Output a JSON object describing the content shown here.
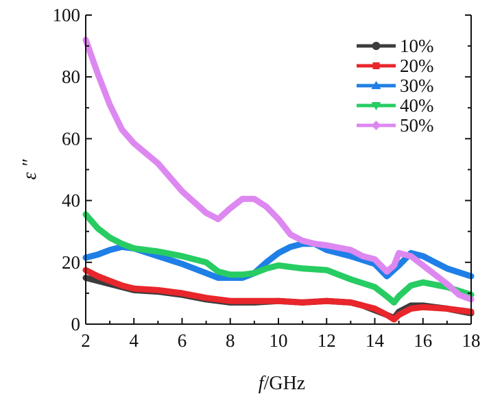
{
  "chart_data": {
    "type": "line",
    "xlabel": "f /GHz",
    "xlabel_italic": "f",
    "xlabel_rest": "/GHz",
    "ylabel": "ε ″",
    "xlim": [
      2,
      18
    ],
    "ylim": [
      0,
      100
    ],
    "xticks": [
      2,
      4,
      6,
      8,
      10,
      12,
      14,
      16,
      18
    ],
    "yticks": [
      0,
      20,
      40,
      60,
      80,
      100
    ],
    "grid": false,
    "legend_position": "top-right",
    "series": [
      {
        "name": "10%",
        "color": "#3c3c3c",
        "marker": "circle",
        "x": [
          2,
          2.5,
          3,
          3.5,
          4,
          5,
          6,
          7,
          8,
          9,
          10,
          11,
          12,
          13,
          13.5,
          14,
          14.5,
          14.8,
          15,
          15.5,
          16,
          17,
          18
        ],
        "y": [
          15,
          14,
          13,
          12,
          11,
          10.5,
          9.5,
          8,
          7,
          7,
          7.5,
          7,
          7.5,
          7,
          6,
          4.5,
          3,
          2,
          4,
          6,
          6,
          5,
          3.5
        ]
      },
      {
        "name": "20%",
        "color": "#e8262b",
        "marker": "square",
        "x": [
          2,
          2.5,
          3,
          3.5,
          4,
          5,
          6,
          7,
          8,
          9,
          10,
          11,
          12,
          13,
          13.5,
          14,
          14.5,
          14.8,
          15,
          15.5,
          16,
          17,
          18
        ],
        "y": [
          17.5,
          15.5,
          14,
          12.5,
          11.5,
          11,
          10,
          8.5,
          7.5,
          7.5,
          7.5,
          7,
          7.5,
          7,
          6,
          5,
          3,
          1.5,
          3,
          5,
          5.5,
          5,
          4
        ]
      },
      {
        "name": "30%",
        "color": "#1f7fe6",
        "marker": "triangle",
        "x": [
          2,
          2.5,
          3,
          3.5,
          4,
          5,
          6,
          7,
          7.5,
          8,
          8.5,
          9,
          9.5,
          10,
          10.5,
          11,
          11.5,
          12,
          13,
          14,
          14.5,
          15,
          15.5,
          16,
          17,
          18
        ],
        "y": [
          21.5,
          22.5,
          24,
          25,
          24.5,
          22,
          19.5,
          16.5,
          15,
          15,
          15,
          16.5,
          20,
          23,
          25,
          26,
          26,
          24,
          22,
          19.5,
          15.5,
          19,
          23,
          22,
          18,
          15.5
        ]
      },
      {
        "name": "40%",
        "color": "#27cc62",
        "marker": "triangle-down",
        "x": [
          2,
          2.5,
          3,
          3.5,
          4,
          5,
          6,
          7,
          7.5,
          8,
          8.5,
          9,
          9.5,
          10,
          11,
          12,
          13,
          14,
          14.5,
          14.8,
          15,
          15.5,
          16,
          17,
          18
        ],
        "y": [
          35.5,
          31,
          28,
          26,
          24.5,
          23.5,
          22,
          20,
          17,
          16,
          16,
          16.5,
          18,
          19,
          18,
          17.5,
          14.5,
          12,
          9,
          7,
          9,
          12.5,
          13.5,
          12,
          9.5
        ]
      },
      {
        "name": "50%",
        "color": "#dd88f0",
        "marker": "diamond",
        "x": [
          2,
          2.5,
          3,
          3.5,
          4,
          5,
          6,
          7,
          7.5,
          8,
          8.5,
          9,
          9.5,
          10,
          10.5,
          11,
          11.5,
          12,
          13,
          13.5,
          14,
          14.5,
          14.8,
          15,
          15.5,
          16,
          16.5,
          17,
          17.5,
          18
        ],
        "y": [
          92,
          81,
          71,
          63,
          58.5,
          52,
          43,
          36,
          34,
          37.5,
          40.5,
          40.5,
          38,
          34,
          29,
          27,
          26,
          25.5,
          24,
          22,
          21,
          17,
          19,
          23,
          22,
          19,
          16,
          13,
          9.5,
          8
        ]
      }
    ]
  }
}
